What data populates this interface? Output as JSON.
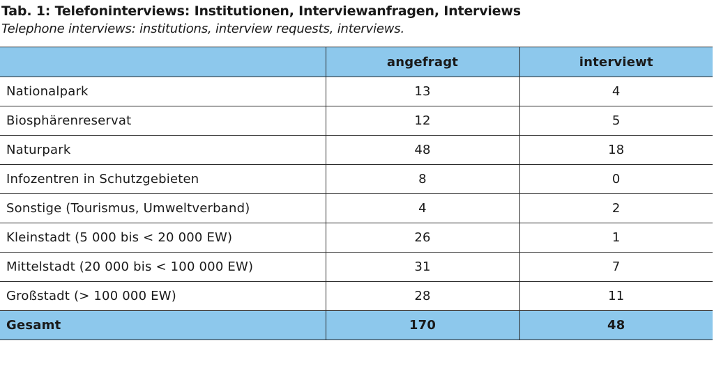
{
  "caption": {
    "title": "Tab. 1: Telefoninterviews: Institutionen, Interviewanfragen, Interviews",
    "subtitle": "Telephone interviews: institutions, interview requests, interviews."
  },
  "table": {
    "headers": [
      "",
      "angefragt",
      "interviewt"
    ],
    "rows": [
      {
        "label": "Nationalpark",
        "angefragt": "13",
        "interviewt": "4"
      },
      {
        "label": "Biosphärenreservat",
        "angefragt": "12",
        "interviewt": "5"
      },
      {
        "label": "Naturpark",
        "angefragt": "48",
        "interviewt": "18"
      },
      {
        "label": "Infozentren in Schutzgebieten",
        "angefragt": "8",
        "interviewt": "0"
      },
      {
        "label": "Sonstige (Tourismus, Umweltverband)",
        "angefragt": "4",
        "interviewt": "2"
      },
      {
        "label": "Kleinstadt (5 000 bis < 20 000 EW)",
        "angefragt": "26",
        "interviewt": "1"
      },
      {
        "label": "Mittelstadt (20 000 bis < 100 000 EW)",
        "angefragt": "31",
        "interviewt": "7"
      },
      {
        "label": "Großstadt (> 100 000 EW)",
        "angefragt": "28",
        "interviewt": "11"
      }
    ],
    "total": {
      "label": "Gesamt",
      "angefragt": "170",
      "interviewt": "48"
    },
    "header_color": "#8dc8ec"
  }
}
